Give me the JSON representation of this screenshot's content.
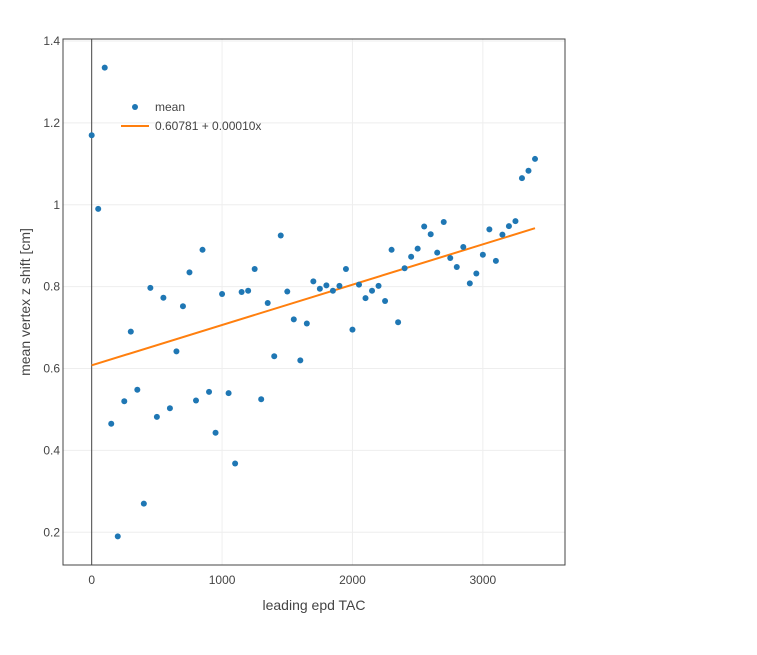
{
  "chart_data": {
    "type": "scatter",
    "xlabel": "leading epd TAC",
    "ylabel": "mean vertex z shift [cm]",
    "xlim": [
      -220,
      3630
    ],
    "ylim": [
      0.12,
      1.405
    ],
    "x_ticks": [
      0,
      1000,
      2000,
      3000
    ],
    "x_tick_labels": [
      "0",
      "1000",
      "2000",
      "3000"
    ],
    "y_ticks": [
      0.2,
      0.4,
      0.6,
      0.8,
      1.0,
      1.2,
      1.4
    ],
    "y_tick_labels": [
      "0.2",
      "0.4",
      "0.6",
      "0.8",
      "1",
      "1.2",
      "1.4"
    ],
    "grid": true,
    "legend_placement": "top-left",
    "series": [
      {
        "name": "mean",
        "kind": "markers",
        "color": "#1f77b4",
        "x": [
          0,
          50,
          100,
          150,
          200,
          250,
          300,
          350,
          400,
          450,
          500,
          550,
          600,
          650,
          700,
          750,
          800,
          850,
          900,
          950,
          1000,
          1050,
          1100,
          1150,
          1200,
          1250,
          1300,
          1350,
          1400,
          1450,
          1500,
          1550,
          1600,
          1650,
          1700,
          1750,
          1800,
          1850,
          1900,
          1950,
          2000,
          2050,
          2100,
          2150,
          2200,
          2250,
          2300,
          2350,
          2400,
          2450,
          2500,
          2550,
          2600,
          2650,
          2700,
          2750,
          2800,
          2850,
          2900,
          2950,
          3000,
          3050,
          3100,
          3150,
          3200,
          3250,
          3300,
          3350,
          3400
        ],
        "y": [
          1.17,
          0.99,
          1.335,
          0.465,
          0.19,
          0.52,
          0.69,
          0.548,
          0.27,
          0.797,
          0.482,
          0.773,
          0.503,
          0.642,
          0.752,
          0.835,
          0.522,
          0.89,
          0.543,
          0.443,
          0.782,
          0.54,
          0.368,
          0.787,
          0.79,
          0.843,
          0.525,
          0.76,
          0.63,
          0.925,
          0.788,
          0.72,
          0.62,
          0.71,
          0.813,
          0.795,
          0.803,
          0.79,
          0.802,
          0.843,
          0.695,
          0.805,
          0.772,
          0.79,
          0.802,
          0.765,
          0.89,
          0.713,
          0.845,
          0.873,
          0.893,
          0.947,
          0.928,
          0.883,
          0.958,
          0.87,
          0.848,
          0.897,
          0.808,
          0.832,
          0.878,
          0.94,
          0.863,
          0.927,
          0.948,
          0.96,
          1.065,
          1.083,
          1.112
        ]
      },
      {
        "name": "0.60781 + 0.00010x",
        "kind": "line",
        "color": "#ff7f0e",
        "x": [
          0,
          3400
        ],
        "y": [
          0.60781,
          0.94281
        ]
      }
    ]
  }
}
